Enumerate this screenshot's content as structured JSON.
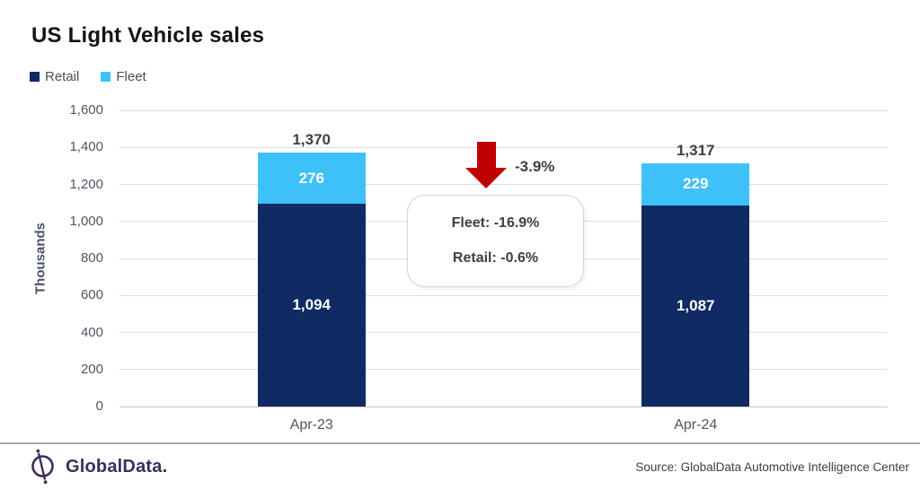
{
  "title": "US Light Vehicle sales",
  "legend": {
    "items": [
      {
        "label": "Retail",
        "color": "#102A63"
      },
      {
        "label": "Fleet",
        "color": "#3EC1F9"
      }
    ]
  },
  "chart_data": {
    "type": "bar",
    "stacked": true,
    "title": "US Light Vehicle sales",
    "categories": [
      "Apr-23",
      "Apr-24"
    ],
    "series": [
      {
        "name": "Retail",
        "color": "#102A63",
        "values": [
          1094,
          1087
        ],
        "labels": [
          "1,094",
          "1,087"
        ]
      },
      {
        "name": "Fleet",
        "color": "#3EC1F9",
        "values": [
          276,
          229
        ],
        "labels": [
          "276",
          "229"
        ]
      }
    ],
    "totals": [
      1370,
      1317
    ],
    "total_labels": [
      "1,370",
      "1,317"
    ],
    "xlabel": "",
    "ylabel": "Thousands",
    "ylim": [
      0,
      1600
    ],
    "yticks": [
      {
        "value": 0,
        "label": "0"
      },
      {
        "value": 200,
        "label": "200"
      },
      {
        "value": 400,
        "label": "400"
      },
      {
        "value": 600,
        "label": "600"
      },
      {
        "value": 800,
        "label": "800"
      },
      {
        "value": 1000,
        "label": "1,000"
      },
      {
        "value": 1200,
        "label": "1,200"
      },
      {
        "value": 1400,
        "label": "1,400"
      },
      {
        "value": 1600,
        "label": "1,600"
      }
    ],
    "grid": true,
    "legend_position": "top-left"
  },
  "annotation": {
    "overall_change_label": "-3.9%",
    "arrow_color": "#C00000",
    "callout_lines": [
      "Fleet: -16.9%",
      "Retail: -0.6%"
    ]
  },
  "footer": {
    "brand": "GlobalData.",
    "source": "Source: GlobalData Automotive Intelligence Center"
  }
}
